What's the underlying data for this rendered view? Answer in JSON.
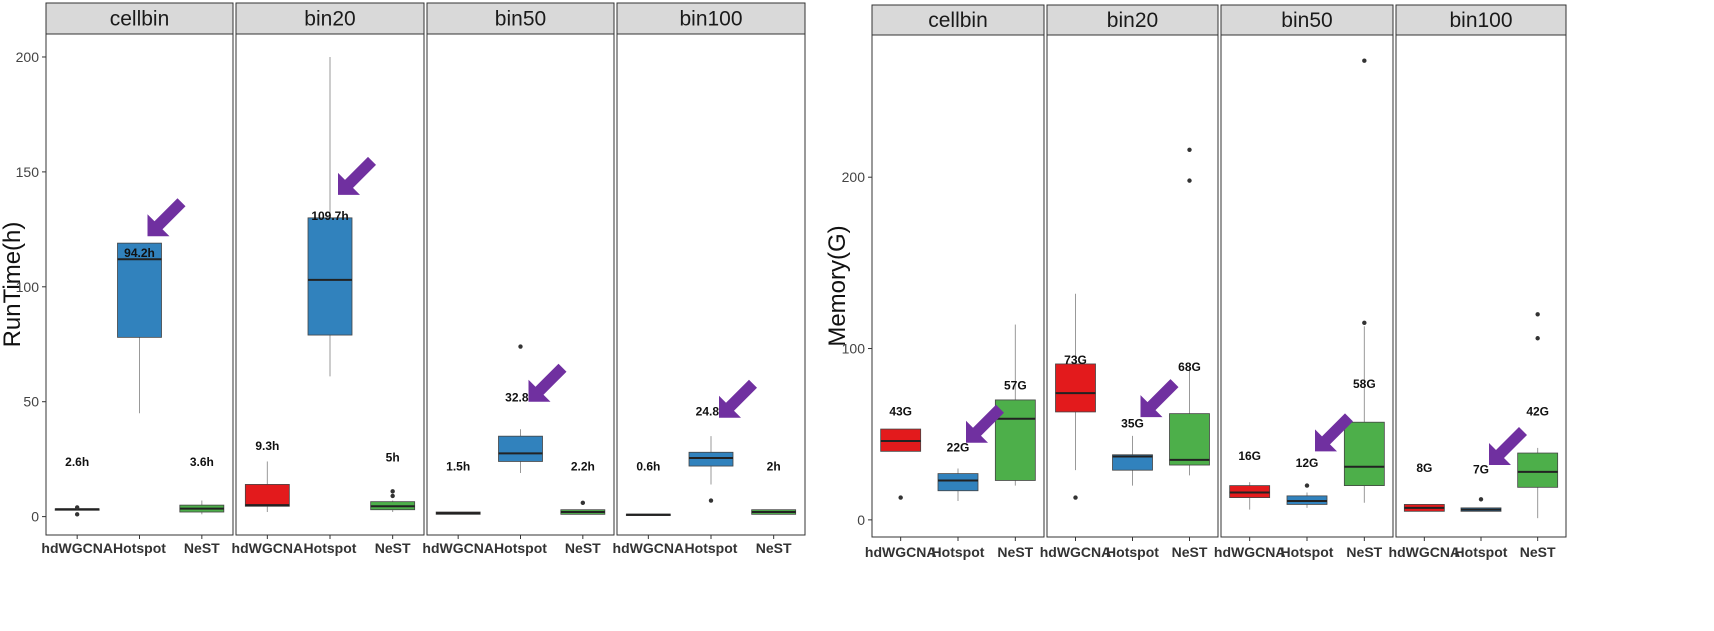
{
  "colors": {
    "hdWGCNA": "#e31a1c",
    "Hotspot": "#3182bd",
    "NeST": "#4daf4a",
    "arrow": "#7030a0",
    "strip": "#d9d9d9"
  },
  "chart_data": [
    {
      "type": "box",
      "ylabel": "RunTime(h)",
      "ylim": [
        -8,
        210
      ],
      "yticks": [
        0,
        50,
        100,
        150,
        200
      ],
      "categories": [
        "hdWGCNA",
        "Hotspot",
        "NeST"
      ],
      "facets": [
        {
          "name": "cellbin",
          "boxes": [
            {
              "method": "hdWGCNA",
              "q1": 3,
              "median": 3.2,
              "q3": 3.4,
              "min": 3,
              "max": 3.4,
              "outliers": [
                1,
                4
              ]
            },
            {
              "method": "Hotspot",
              "q1": 78,
              "median": 112,
              "q3": 119,
              "min": 45,
              "max": 119,
              "outliers": []
            },
            {
              "method": "NeST",
              "q1": 2,
              "median": 3.5,
              "q3": 5,
              "min": 1,
              "max": 7,
              "outliers": []
            }
          ],
          "labels": [
            {
              "method": "hdWGCNA",
              "text": "2.6h",
              "y": 22
            },
            {
              "method": "Hotspot",
              "text": "94.2h",
              "y": 113
            },
            {
              "method": "NeST",
              "text": "3.6h",
              "y": 22
            }
          ],
          "arrow": {
            "method": "Hotspot",
            "y": 122
          }
        },
        {
          "name": "bin20",
          "boxes": [
            {
              "method": "hdWGCNA",
              "q1": 4.5,
              "median": 5,
              "q3": 14,
              "min": 2,
              "max": 24,
              "outliers": []
            },
            {
              "method": "Hotspot",
              "q1": 79,
              "median": 103,
              "q3": 130,
              "min": 61,
              "max": 200,
              "outliers": []
            },
            {
              "method": "NeST",
              "q1": 3,
              "median": 4.5,
              "q3": 6.5,
              "min": 2,
              "max": 7,
              "outliers": [
                9,
                11
              ]
            }
          ],
          "labels": [
            {
              "method": "hdWGCNA",
              "text": "9.3h",
              "y": 29
            },
            {
              "method": "Hotspot",
              "text": "109.7h",
              "y": 129
            },
            {
              "method": "NeST",
              "text": "5h",
              "y": 24
            }
          ],
          "arrow": {
            "method": "Hotspot",
            "y": 140
          }
        },
        {
          "name": "bin50",
          "boxes": [
            {
              "method": "hdWGCNA",
              "q1": 1,
              "median": 1.5,
              "q3": 2,
              "min": 1,
              "max": 2,
              "outliers": []
            },
            {
              "method": "Hotspot",
              "q1": 24,
              "median": 27.5,
              "q3": 35,
              "min": 19,
              "max": 38,
              "outliers": [
                74
              ]
            },
            {
              "method": "NeST",
              "q1": 1,
              "median": 2,
              "q3": 3,
              "min": 1,
              "max": 3,
              "outliers": [
                6
              ]
            }
          ],
          "labels": [
            {
              "method": "hdWGCNA",
              "text": "1.5h",
              "y": 20
            },
            {
              "method": "Hotspot",
              "text": "32.8h",
              "y": 50
            },
            {
              "method": "NeST",
              "text": "2.2h",
              "y": 20
            }
          ],
          "arrow": {
            "method": "Hotspot",
            "y": 50
          }
        },
        {
          "name": "bin100",
          "boxes": [
            {
              "method": "hdWGCNA",
              "q1": 0.5,
              "median": 0.8,
              "q3": 1.1,
              "min": 0.5,
              "max": 1.1,
              "outliers": []
            },
            {
              "method": "Hotspot",
              "q1": 22,
              "median": 25.5,
              "q3": 28,
              "min": 14,
              "max": 35,
              "outliers": [
                7
              ]
            },
            {
              "method": "NeST",
              "q1": 1,
              "median": 2,
              "q3": 3,
              "min": 1,
              "max": 3,
              "outliers": []
            }
          ],
          "labels": [
            {
              "method": "hdWGCNA",
              "text": "0.6h",
              "y": 20
            },
            {
              "method": "Hotspot",
              "text": "24.8h",
              "y": 44
            },
            {
              "method": "NeST",
              "text": "2h",
              "y": 20
            }
          ],
          "arrow": {
            "method": "Hotspot",
            "y": 43
          }
        }
      ]
    },
    {
      "type": "box",
      "ylabel": "Memory(G)",
      "ylim": [
        -10,
        283
      ],
      "yticks": [
        0,
        100,
        200
      ],
      "categories": [
        "hdWGCNA",
        "Hotspot",
        "NeST"
      ],
      "facets": [
        {
          "name": "cellbin",
          "boxes": [
            {
              "method": "hdWGCNA",
              "q1": 40,
              "median": 46,
              "q3": 53,
              "min": 40,
              "max": 53,
              "outliers": [
                13
              ]
            },
            {
              "method": "Hotspot",
              "q1": 17,
              "median": 23,
              "q3": 27,
              "min": 11,
              "max": 30,
              "outliers": []
            },
            {
              "method": "NeST",
              "q1": 23,
              "median": 59,
              "q3": 70,
              "min": 20,
              "max": 114,
              "outliers": []
            }
          ],
          "labels": [
            {
              "method": "hdWGCNA",
              "text": "43G",
              "y": 61
            },
            {
              "method": "Hotspot",
              "text": "22G",
              "y": 40
            },
            {
              "method": "NeST",
              "text": "57G",
              "y": 76
            }
          ],
          "arrow": {
            "method": "Hotspot",
            "y": 45
          }
        },
        {
          "name": "bin20",
          "boxes": [
            {
              "method": "hdWGCNA",
              "q1": 63,
              "median": 74,
              "q3": 91,
              "min": 29,
              "max": 132,
              "outliers": [
                13
              ]
            },
            {
              "method": "Hotspot",
              "q1": 29,
              "median": 37,
              "q3": 38,
              "min": 20,
              "max": 49,
              "outliers": []
            },
            {
              "method": "NeST",
              "q1": 32,
              "median": 35,
              "q3": 62,
              "min": 26,
              "max": 89,
              "outliers": [
                198,
                216
              ]
            }
          ],
          "labels": [
            {
              "method": "hdWGCNA",
              "text": "73G",
              "y": 91
            },
            {
              "method": "Hotspot",
              "text": "35G",
              "y": 54
            },
            {
              "method": "NeST",
              "text": "68G",
              "y": 87
            }
          ],
          "arrow": {
            "method": "Hotspot",
            "y": 60
          }
        },
        {
          "name": "bin50",
          "boxes": [
            {
              "method": "hdWGCNA",
              "q1": 13,
              "median": 16,
              "q3": 20,
              "min": 6,
              "max": 22,
              "outliers": []
            },
            {
              "method": "Hotspot",
              "q1": 9,
              "median": 11,
              "q3": 14,
              "min": 7,
              "max": 16,
              "outliers": [
                20
              ]
            },
            {
              "method": "NeST",
              "q1": 20,
              "median": 31,
              "q3": 57,
              "min": 10,
              "max": 113,
              "outliers": [
                115,
                268
              ]
            }
          ],
          "labels": [
            {
              "method": "hdWGCNA",
              "text": "16G",
              "y": 35
            },
            {
              "method": "Hotspot",
              "text": "12G",
              "y": 31
            },
            {
              "method": "NeST",
              "text": "58G",
              "y": 77
            }
          ],
          "arrow": {
            "method": "Hotspot",
            "y": 40
          }
        },
        {
          "name": "bin100",
          "boxes": [
            {
              "method": "hdWGCNA",
              "q1": 5,
              "median": 7,
              "q3": 9,
              "min": 5,
              "max": 9,
              "outliers": []
            },
            {
              "method": "Hotspot",
              "q1": 5,
              "median": 6,
              "q3": 7,
              "min": 5,
              "max": 7,
              "outliers": [
                12
              ]
            },
            {
              "method": "NeST",
              "q1": 19,
              "median": 28,
              "q3": 39,
              "min": 1,
              "max": 42,
              "outliers": [
                106,
                120
              ]
            }
          ],
          "labels": [
            {
              "method": "hdWGCNA",
              "text": "8G",
              "y": 28
            },
            {
              "method": "Hotspot",
              "text": "7G",
              "y": 27
            },
            {
              "method": "NeST",
              "text": "42G",
              "y": 61
            }
          ],
          "arrow": {
            "method": "Hotspot",
            "y": 32
          }
        }
      ]
    }
  ]
}
